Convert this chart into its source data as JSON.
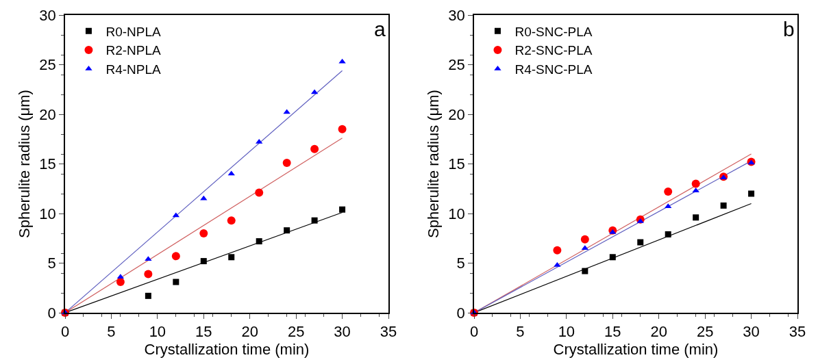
{
  "chart_data": [
    {
      "type": "scatter",
      "xlabel": "Crystallization time (min)",
      "ylabel": "Spherulite radius (μm)",
      "annotations": [
        "a"
      ],
      "xlim": [
        0,
        35
      ],
      "xticks": [
        0,
        5,
        10,
        15,
        20,
        25,
        30,
        35
      ],
      "ylim": [
        0,
        30
      ],
      "yticks": [
        0,
        5,
        10,
        15,
        20,
        25,
        30
      ],
      "grid": false,
      "legend": "top left",
      "series": [
        {
          "name": "R0-NPLA",
          "color": "#000000",
          "marker": "square",
          "x": [
            0,
            9,
            12,
            15,
            18,
            21,
            24,
            27,
            30
          ],
          "values": [
            0,
            1.7,
            3.1,
            5.2,
            5.6,
            7.2,
            8.3,
            9.3,
            10.4
          ]
        },
        {
          "name": "R2-NPLA",
          "color": "#ff0000",
          "marker": "circle",
          "x": [
            0,
            6,
            9,
            12,
            15,
            18,
            21,
            24,
            27,
            30
          ],
          "values": [
            0,
            3.1,
            3.9,
            5.7,
            8.0,
            9.3,
            12.1,
            15.1,
            16.5,
            18.5
          ]
        },
        {
          "name": "R4-NPLA",
          "color": "#0000ff",
          "marker": "triangle",
          "x": [
            0,
            6,
            9,
            12,
            15,
            18,
            21,
            24,
            27,
            30
          ],
          "values": [
            0,
            3.6,
            5.4,
            9.8,
            11.5,
            14.0,
            17.2,
            20.2,
            22.2,
            25.3
          ]
        },
        {
          "type": "line",
          "color": "#000000",
          "marker": "none",
          "x": [
            0,
            30
          ],
          "values": [
            0,
            10.1
          ]
        },
        {
          "type": "line",
          "color": "#d06060",
          "marker": "none",
          "x": [
            0,
            30
          ],
          "values": [
            0,
            17.6
          ]
        },
        {
          "type": "line",
          "color": "#6060c0",
          "marker": "none",
          "x": [
            0,
            30
          ],
          "values": [
            0,
            24.4
          ]
        }
      ]
    },
    {
      "type": "scatter",
      "xlabel": "Crystallization time (min)",
      "ylabel": "Spherulite radius (μm)",
      "annotations": [
        "b"
      ],
      "xlim": [
        0,
        35
      ],
      "xticks": [
        0,
        5,
        10,
        15,
        20,
        25,
        30,
        35
      ],
      "ylim": [
        0,
        30
      ],
      "yticks": [
        0,
        5,
        10,
        15,
        20,
        25,
        30
      ],
      "grid": false,
      "legend": "top left",
      "series": [
        {
          "name": "R0-SNC-PLA",
          "color": "#000000",
          "marker": "square",
          "x": [
            0,
            12,
            15,
            18,
            21,
            24,
            27,
            30
          ],
          "values": [
            0,
            4.2,
            5.6,
            7.1,
            7.9,
            9.6,
            10.8,
            12.0
          ]
        },
        {
          "name": "R2-SNC-PLA",
          "color": "#ff0000",
          "marker": "circle",
          "x": [
            0,
            9,
            12,
            15,
            18,
            21,
            24,
            27,
            30
          ],
          "values": [
            0,
            6.3,
            7.4,
            8.3,
            9.4,
            12.2,
            13.0,
            13.7,
            15.2
          ]
        },
        {
          "name": "R4-SNC-PLA",
          "color": "#0000ff",
          "marker": "triangle",
          "x": [
            0,
            9,
            12,
            15,
            18,
            21,
            24,
            27,
            30
          ],
          "values": [
            0,
            4.8,
            6.5,
            8.1,
            9.2,
            10.7,
            12.3,
            13.6,
            15.1
          ]
        },
        {
          "type": "line",
          "color": "#000000",
          "marker": "none",
          "x": [
            0,
            30
          ],
          "values": [
            0,
            11.0
          ]
        },
        {
          "type": "line",
          "color": "#d06060",
          "marker": "none",
          "x": [
            0,
            30
          ],
          "values": [
            0,
            16.0
          ]
        },
        {
          "type": "line",
          "color": "#6060c0",
          "marker": "none",
          "x": [
            0,
            30
          ],
          "values": [
            0,
            15.3
          ]
        }
      ]
    }
  ]
}
